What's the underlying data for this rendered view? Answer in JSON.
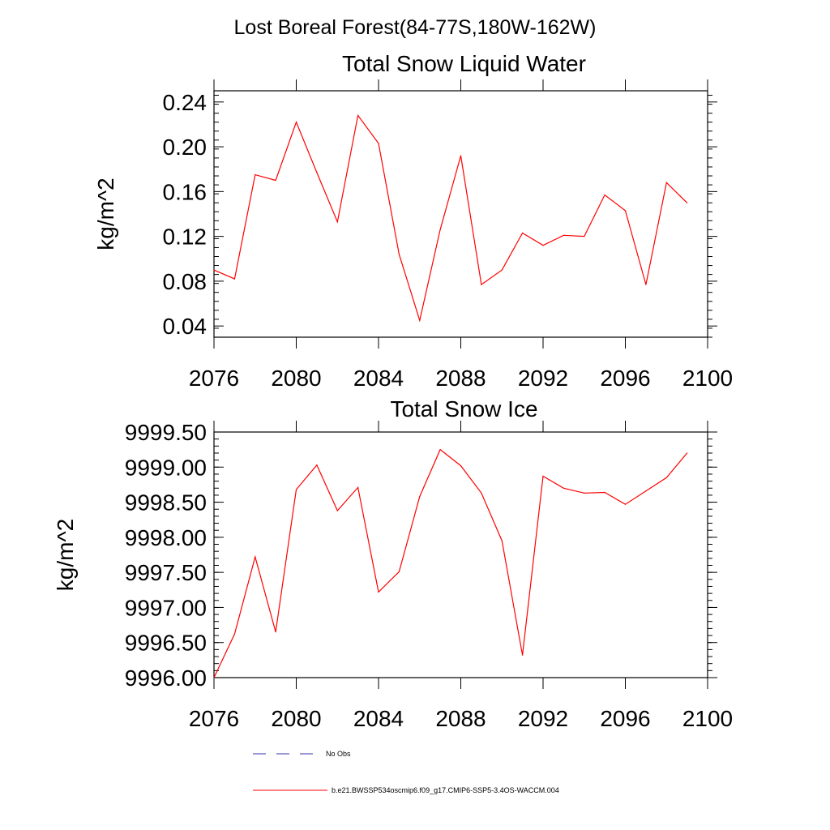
{
  "figure_title": "Lost Boreal Forest(84-77S,180W-162W)",
  "chart_data": [
    {
      "type": "line",
      "title": "Total Snow Liquid Water",
      "xlabel": "",
      "ylabel": "kg/m^2",
      "xlim": [
        2076,
        2100
      ],
      "ylim": [
        0.03,
        0.25
      ],
      "xticks": [
        2076,
        2080,
        2084,
        2088,
        2092,
        2096,
        2100
      ],
      "xtick_labels": [
        "2076",
        "2080",
        "2084",
        "2088",
        "2092",
        "2096",
        "2100"
      ],
      "yticks": [
        0.04,
        0.08,
        0.12,
        0.16,
        0.2,
        0.24
      ],
      "ytick_labels": [
        "0.04",
        "0.08",
        "0.12",
        "0.16",
        "0.20",
        "0.24"
      ],
      "grid": false,
      "series": [
        {
          "name": "b.e21.BWSSP534oscmip6.f09_g17.CMIP6-SSP5-3.4OS-WACCM.004",
          "color": "#ff0000",
          "x": [
            2076,
            2077,
            2078,
            2079,
            2080,
            2081,
            2082,
            2083,
            2084,
            2085,
            2086,
            2087,
            2088,
            2089,
            2090,
            2091,
            2092,
            2093,
            2094,
            2095,
            2096,
            2097,
            2098,
            2099
          ],
          "values": [
            0.09,
            0.082,
            0.175,
            0.17,
            0.222,
            0.177,
            0.133,
            0.228,
            0.203,
            0.104,
            0.045,
            0.126,
            0.192,
            0.077,
            0.09,
            0.123,
            0.112,
            0.121,
            0.12,
            0.157,
            0.143,
            0.077,
            0.168,
            0.15
          ]
        }
      ]
    },
    {
      "type": "line",
      "title": "Total Snow Ice",
      "xlabel": "",
      "ylabel": "kg/m^2",
      "xlim": [
        2076,
        2100
      ],
      "ylim": [
        9996.0,
        9999.5
      ],
      "xticks": [
        2076,
        2080,
        2084,
        2088,
        2092,
        2096,
        2100
      ],
      "xtick_labels": [
        "2076",
        "2080",
        "2084",
        "2088",
        "2092",
        "2096",
        "2100"
      ],
      "yticks": [
        9996.0,
        9996.5,
        9997.0,
        9997.5,
        9998.0,
        9998.5,
        9999.0,
        9999.5
      ],
      "ytick_labels": [
        "9996.00",
        "9996.50",
        "9997.00",
        "9997.50",
        "9998.00",
        "9998.50",
        "9999.00",
        "9999.50"
      ],
      "grid": false,
      "series": [
        {
          "name": "b.e21.BWSSP534oscmip6.f09_g17.CMIP6-SSP5-3.4OS-WACCM.004",
          "color": "#ff0000",
          "x": [
            2076,
            2077,
            2078,
            2079,
            2080,
            2081,
            2082,
            2083,
            2084,
            2085,
            2086,
            2087,
            2088,
            2089,
            2090,
            2091,
            2092,
            2093,
            2094,
            2095,
            2096,
            2097,
            2098,
            2099
          ],
          "values": [
            9996.0,
            9996.62,
            9997.72,
            9996.65,
            9998.68,
            9999.03,
            9998.38,
            9998.71,
            9997.22,
            9997.51,
            9998.58,
            9999.25,
            9999.02,
            9998.63,
            9997.95,
            9996.32,
            9998.87,
            9998.7,
            9998.63,
            9998.64,
            9998.47,
            9998.66,
            9998.85,
            9999.2
          ]
        }
      ]
    }
  ],
  "legend": [
    {
      "label": "No Obs",
      "style": "dashed",
      "color": "#3333aa"
    },
    {
      "label": "b.e21.BWSSP534oscmip6.f09_g17.CMIP6-SSP5-3.4OS-WACCM.004",
      "style": "solid",
      "color": "#ff0000"
    }
  ]
}
